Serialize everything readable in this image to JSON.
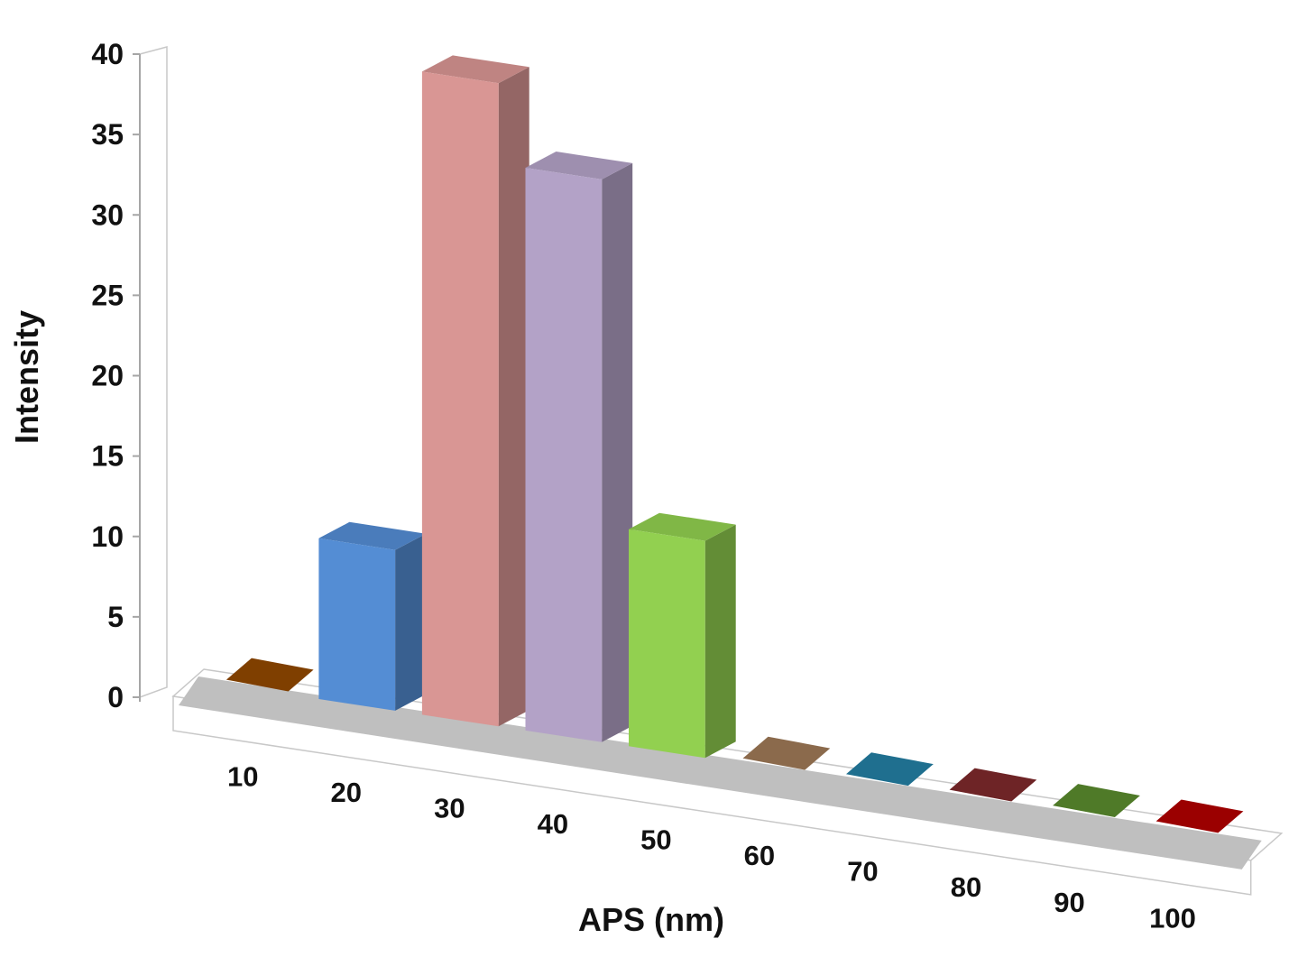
{
  "chart_data": {
    "type": "bar",
    "subtype": "3d-column",
    "title": "",
    "xlabel": "APS (nm)",
    "ylabel": "Intensity",
    "categories": [
      "10",
      "20",
      "30",
      "40",
      "50",
      "60",
      "70",
      "80",
      "90",
      "100"
    ],
    "values": [
      0,
      10,
      40,
      35,
      13.5,
      0,
      0,
      0,
      0,
      0
    ],
    "ylim": [
      0,
      40
    ],
    "yticks": [
      "0",
      "5",
      "10",
      "15",
      "20",
      "25",
      "30",
      "35",
      "40"
    ],
    "grid": false,
    "legend": "none",
    "colors": [
      "#7f3f00",
      "#548dd4",
      "#d99694",
      "#b3a2c7",
      "#92d050",
      "#8b6a4c",
      "#1f6f8f",
      "#6e2426",
      "#4f7a28",
      "#9b0000"
    ]
  }
}
